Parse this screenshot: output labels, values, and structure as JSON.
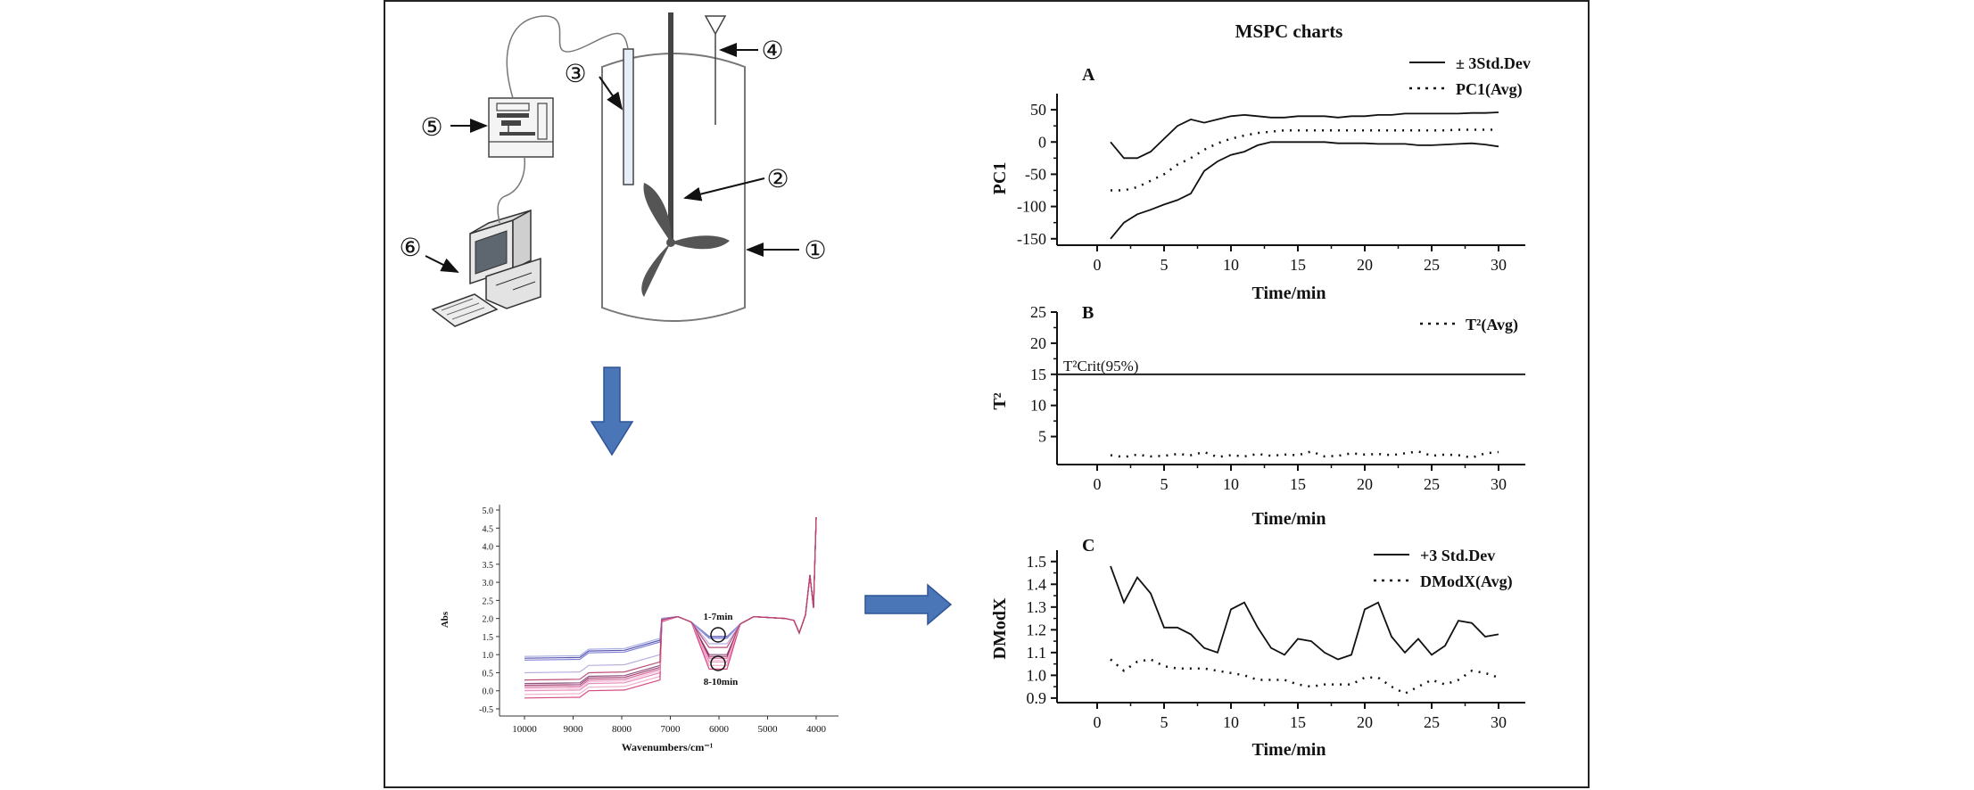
{
  "diagram": {
    "callouts": [
      "①",
      "②",
      "③",
      "④",
      "⑤",
      "⑥"
    ],
    "spectra": {
      "ylabel": "Abs",
      "xlabel": "Wavenumbers/cm⁻¹",
      "yticks": [
        "5.0",
        "4.5",
        "4.0",
        "3.5",
        "3.0",
        "2.5",
        "2.0",
        "1.5",
        "1.0",
        "0.5",
        "0.0",
        "-0.5"
      ],
      "xticks": [
        "10000",
        "9000",
        "8000",
        "7000",
        "6000",
        "5000",
        "4000"
      ],
      "annotation_top": "1-7min",
      "annotation_bottom": "8-10min"
    }
  },
  "mspc": {
    "title": "MSPC charts",
    "xlabel": "Time/min",
    "xticks": [
      "0",
      "5",
      "10",
      "15",
      "20",
      "25",
      "30"
    ],
    "panel_a": {
      "letter": "A",
      "ylabel": "PC1",
      "yticks": [
        "50",
        "0",
        "-50",
        "-100",
        "-150"
      ],
      "legend": [
        "± 3Std.Dev",
        "PC1(Avg)"
      ]
    },
    "panel_b": {
      "letter": "B",
      "ylabel": "T²",
      "yticks": [
        "25",
        "20",
        "15",
        "10",
        "5"
      ],
      "legend": [
        "T²(Avg)"
      ],
      "crit_label": "T²Crit(95%)"
    },
    "panel_c": {
      "letter": "C",
      "ylabel": "DModX",
      "yticks": [
        "1.5",
        "1.4",
        "1.3",
        "1.2",
        "1.1",
        "1.0",
        "0.9"
      ],
      "legend": [
        "+3 Std.Dev",
        "DModX(Avg)"
      ]
    }
  },
  "chart_data": [
    {
      "type": "line",
      "title": "A",
      "xlabel": "Time/min",
      "ylabel": "PC1",
      "xlim": [
        -3,
        32
      ],
      "ylim": [
        -160,
        75
      ],
      "series": [
        {
          "name": "± 3Std.Dev",
          "style": "solid",
          "x": [
            1,
            2,
            3,
            4,
            5,
            6,
            7,
            8,
            9,
            10,
            11,
            12,
            13,
            14,
            15,
            16,
            17,
            18,
            19,
            20,
            21,
            22,
            23,
            24,
            25,
            26,
            27,
            28,
            29,
            30
          ],
          "values": [
            0,
            -25,
            -25,
            -15,
            5,
            25,
            35,
            30,
            35,
            40,
            42,
            40,
            38,
            38,
            40,
            40,
            40,
            38,
            40,
            40,
            42,
            42,
            44,
            44,
            44,
            44,
            44,
            45,
            45,
            46
          ]
        },
        {
          "x": [
            1,
            2,
            3,
            4,
            5,
            6,
            7,
            8,
            9,
            10,
            11,
            12,
            13,
            14,
            15,
            16,
            17,
            18,
            19,
            20,
            21,
            22,
            23,
            24,
            25,
            26,
            27,
            28,
            29,
            30
          ],
          "values": [
            -150,
            -125,
            -112,
            -105,
            -97,
            -90,
            -80,
            -45,
            -30,
            -20,
            -15,
            -5,
            0,
            0,
            0,
            0,
            0,
            -2,
            -2,
            -2,
            -3,
            -3,
            -3,
            -5,
            -5,
            -4,
            -3,
            -2,
            -4,
            -7
          ],
          "style": "solid"
        },
        {
          "name": "PC1(Avg)",
          "style": "dotted",
          "x": [
            1,
            2,
            3,
            4,
            5,
            6,
            7,
            8,
            9,
            10,
            11,
            12,
            13,
            14,
            15,
            16,
            17,
            18,
            19,
            20,
            21,
            22,
            23,
            24,
            25,
            26,
            27,
            28,
            29,
            30
          ],
          "values": [
            -75,
            -75,
            -70,
            -60,
            -50,
            -35,
            -25,
            -12,
            -2,
            5,
            10,
            14,
            16,
            18,
            18,
            18,
            18,
            18,
            18,
            18,
            18,
            18,
            18,
            18,
            18,
            18,
            19,
            19,
            19,
            19
          ]
        }
      ]
    },
    {
      "type": "line",
      "title": "B",
      "xlabel": "Time/min",
      "ylabel": "T²",
      "xlim": [
        -3,
        32
      ],
      "ylim": [
        0.5,
        25
      ],
      "series": [
        {
          "name": "T²(Avg)",
          "style": "dotted",
          "x": [
            1,
            2,
            3,
            4,
            5,
            6,
            7,
            8,
            9,
            10,
            11,
            12,
            13,
            14,
            15,
            16,
            17,
            18,
            19,
            20,
            21,
            22,
            23,
            24,
            25,
            26,
            27,
            28,
            29,
            30
          ],
          "values": [
            2.0,
            1.7,
            2.1,
            1.8,
            1.9,
            2.2,
            2.0,
            2.5,
            1.7,
            2.0,
            1.8,
            2.2,
            1.9,
            2.1,
            2.0,
            2.6,
            1.8,
            1.9,
            2.3,
            2.1,
            2.2,
            2.0,
            2.3,
            2.6,
            1.9,
            2.1,
            2.0,
            1.6,
            2.3,
            2.5
          ]
        },
        {
          "name": "T²Crit(95%)",
          "style": "solid",
          "x": [
            -3,
            32
          ],
          "values": [
            15,
            15
          ]
        }
      ]
    },
    {
      "type": "line",
      "title": "C",
      "xlabel": "Time/min",
      "ylabel": "DModX",
      "xlim": [
        -3,
        32
      ],
      "ylim": [
        0.88,
        1.55
      ],
      "series": [
        {
          "name": "+3 Std.Dev",
          "style": "solid",
          "x": [
            1,
            2,
            3,
            4,
            5,
            6,
            7,
            8,
            9,
            10,
            11,
            12,
            13,
            14,
            15,
            16,
            17,
            18,
            19,
            20,
            21,
            22,
            23,
            24,
            25,
            26,
            27,
            28,
            29,
            30
          ],
          "values": [
            1.48,
            1.32,
            1.43,
            1.36,
            1.21,
            1.21,
            1.18,
            1.12,
            1.1,
            1.29,
            1.32,
            1.21,
            1.12,
            1.09,
            1.16,
            1.15,
            1.1,
            1.07,
            1.09,
            1.29,
            1.32,
            1.17,
            1.1,
            1.16,
            1.09,
            1.13,
            1.24,
            1.23,
            1.17,
            1.18
          ]
        },
        {
          "name": "DModX(Avg)",
          "style": "dotted",
          "x": [
            1,
            2,
            3,
            4,
            5,
            6,
            7,
            8,
            9,
            10,
            11,
            12,
            13,
            14,
            15,
            16,
            17,
            18,
            19,
            20,
            21,
            22,
            23,
            24,
            25,
            26,
            27,
            28,
            29,
            30
          ],
          "values": [
            1.07,
            1.02,
            1.06,
            1.07,
            1.04,
            1.03,
            1.03,
            1.03,
            1.02,
            1.01,
            1.0,
            0.98,
            0.98,
            0.98,
            0.96,
            0.95,
            0.96,
            0.96,
            0.96,
            0.99,
            0.99,
            0.95,
            0.92,
            0.95,
            0.98,
            0.96,
            0.98,
            1.02,
            1.01,
            0.99
          ]
        }
      ]
    }
  ]
}
